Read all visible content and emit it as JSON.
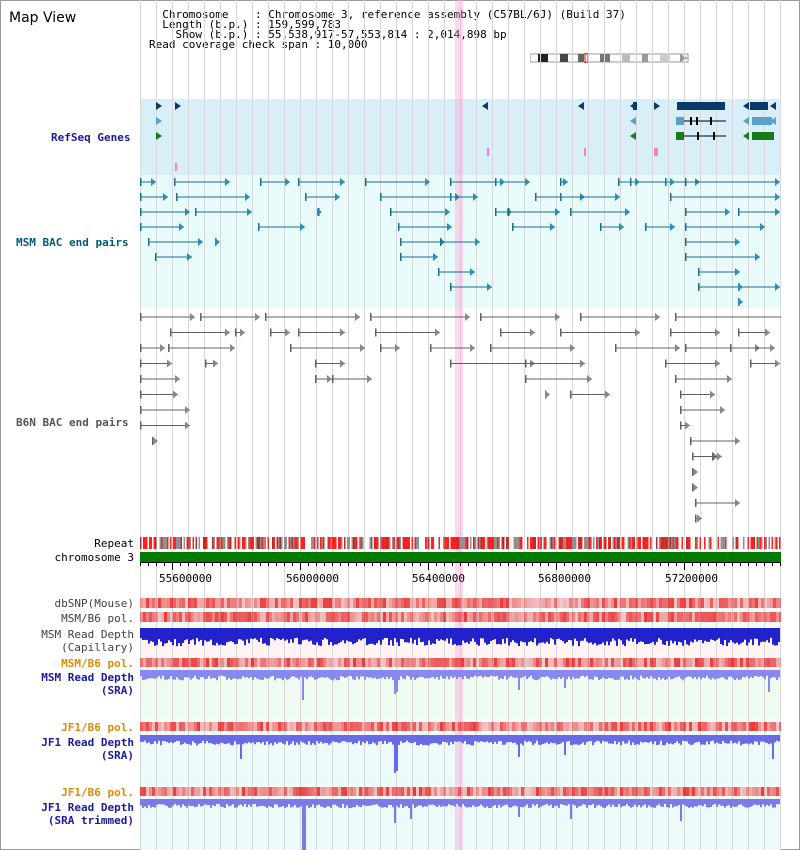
{
  "header": {
    "title": "Map View",
    "info_lines": [
      "  Chromosome    : Chromosome 3, reference assembly (C57BL/6J) (Build 37)",
      "  Length (b.p.) : 159,599,783",
      "    Show (b.p.) : 55,538,917-57,553,814 : 2,014,898 bp",
      "Read coverage check span : 10,000"
    ]
  },
  "tracks": {
    "refseq": "RefSeq Genes",
    "msm_bac": "MSM BAC end pairs",
    "b6n_bac": "B6N BAC end pairs",
    "repeat": "Repeat",
    "chromosome": "chromosome 3",
    "dbsnp": "dbSNP(Mouse)",
    "msm_b6_pol_1": "MSM/B6 pol.",
    "msm_depth_cap_1": "MSM Read Depth",
    "msm_depth_cap_2": "(Capillary)",
    "msm_b6_pol_2": "MSM/B6 pol.",
    "msm_depth_sra_1": "MSM Read Depth",
    "msm_depth_sra_2": "(SRA)",
    "jf1_b6_pol_1": "JF1/B6 pol.",
    "jf1_depth_sra_1": "JF1 Read Depth",
    "jf1_depth_sra_2": "(SRA)",
    "jf1_b6_pol_2": "JF1/B6 pol.",
    "jf1_depth_trim_1": "JF1 Read Depth",
    "jf1_depth_trim_2": "(SRA trimmed)"
  },
  "axis": {
    "ticks": [
      "55600000",
      "56000000",
      "56400000",
      "56800000",
      "57200000"
    ]
  },
  "colors": {
    "refseq_bg": "#d8eef8",
    "bac_bg": "#e8fbfb",
    "pol_red": "#e83030",
    "depth_blue": "#3a3ae0",
    "chromosome_green": "#007a00",
    "highlight": "#ffb6e0"
  }
}
